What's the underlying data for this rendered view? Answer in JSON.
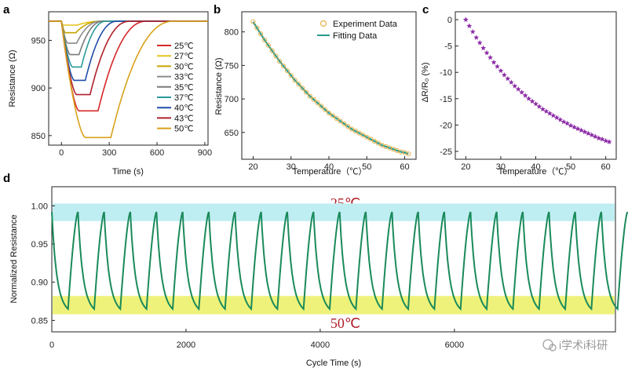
{
  "panels": {
    "a": "a",
    "b": "b",
    "c": "c",
    "d": "d"
  },
  "watermark": "i学术i科研",
  "chart_data": [
    {
      "panel": "a",
      "type": "line",
      "xlabel": "Time (s)",
      "ylabel": "Resistance (Ω)",
      "xlim": [
        -80,
        920
      ],
      "ylim": [
        840,
        980
      ],
      "xticks": [
        0,
        300,
        600,
        900
      ],
      "yticks": [
        850,
        900,
        950
      ],
      "legend_position": "right",
      "series": [
        {
          "name": "25℃",
          "color": "#d62728",
          "min": 876,
          "t_fall_end": 110,
          "t_hold_end": 230
        },
        {
          "name": "27℃",
          "color": "#e8c21f",
          "min": 966,
          "t_fall_end": 10,
          "t_hold_end": 100
        },
        {
          "name": "30℃",
          "color": "#c9a400",
          "min": 958,
          "t_fall_end": 25,
          "t_hold_end": 90
        },
        {
          "name": "33℃",
          "color": "#8c8c8c",
          "min": 947,
          "t_fall_end": 40,
          "t_hold_end": 95
        },
        {
          "name": "35℃",
          "color": "#7a7a7a",
          "min": 935,
          "t_fall_end": 55,
          "t_hold_end": 110
        },
        {
          "name": "37℃",
          "color": "#2a9a9a",
          "min": 922,
          "t_fall_end": 70,
          "t_hold_end": 125
        },
        {
          "name": "40℃",
          "color": "#1f4ea8",
          "min": 908,
          "t_fall_end": 80,
          "t_hold_end": 150
        },
        {
          "name": "43℃",
          "color": "#b0202a",
          "min": 893,
          "t_fall_end": 95,
          "t_hold_end": 180
        },
        {
          "name": "50℃",
          "color": "#d8a21a",
          "min": 848,
          "t_fall_end": 150,
          "t_hold_end": 310
        }
      ],
      "baseline": 970
    },
    {
      "panel": "b",
      "type": "scatter",
      "xlabel": "Temperature（℃）",
      "ylabel": "Resistance (Ω)",
      "xlim": [
        17,
        63
      ],
      "ylim": [
        610,
        830
      ],
      "xticks": [
        20,
        30,
        40,
        50,
        60
      ],
      "yticks": [
        650,
        700,
        750,
        800
      ],
      "legend_position": "top-right",
      "series": [
        {
          "name": "Experiment Data",
          "color": "#e8b04a",
          "marker": "hexagon-open"
        },
        {
          "name": "Fitting Data",
          "color": "#2a9a8a",
          "marker": "line"
        }
      ],
      "x": [
        20,
        21,
        22,
        23,
        24,
        25,
        26,
        27,
        28,
        29,
        30,
        31,
        32,
        33,
        34,
        35,
        36,
        37,
        38,
        39,
        40,
        41,
        42,
        43,
        44,
        45,
        46,
        47,
        48,
        49,
        50,
        51,
        52,
        53,
        54,
        55,
        56,
        57,
        58,
        59,
        60,
        61
      ],
      "y": [
        815,
        806,
        797,
        788,
        780,
        772,
        764,
        756,
        749,
        742,
        735,
        728,
        722,
        716,
        710,
        704,
        699,
        694,
        689,
        684,
        679,
        675,
        671,
        667,
        663,
        659,
        655,
        652,
        649,
        646,
        643,
        640,
        637,
        634,
        631,
        629,
        627,
        625,
        623,
        621,
        620,
        618
      ]
    },
    {
      "panel": "c",
      "type": "scatter",
      "xlabel": "Temperature（℃）",
      "ylabel": "ΔR/R₀ (%)",
      "xlim": [
        17,
        63
      ],
      "ylim": [
        -26.5,
        1.5
      ],
      "xticks": [
        20,
        30,
        40,
        50,
        60
      ],
      "yticks": [
        0,
        -5,
        -10,
        -15,
        -20,
        -25
      ],
      "series": [
        {
          "name": "",
          "color": "#8e2da8",
          "marker": "star"
        }
      ],
      "x": [
        20,
        21,
        22,
        23,
        24,
        25,
        26,
        27,
        28,
        29,
        30,
        31,
        32,
        33,
        34,
        35,
        36,
        37,
        38,
        39,
        40,
        41,
        42,
        43,
        44,
        45,
        46,
        47,
        48,
        49,
        50,
        51,
        52,
        53,
        54,
        55,
        56,
        57,
        58,
        59,
        60,
        61
      ],
      "y": [
        0,
        -1.2,
        -2.3,
        -3.4,
        -4.4,
        -5.4,
        -6.3,
        -7.2,
        -8.1,
        -8.9,
        -9.7,
        -10.5,
        -11.2,
        -11.9,
        -12.6,
        -13.2,
        -13.8,
        -14.4,
        -15,
        -15.5,
        -16,
        -16.5,
        -17,
        -17.4,
        -17.8,
        -18.2,
        -18.6,
        -19,
        -19.4,
        -19.7,
        -20.1,
        -20.4,
        -20.7,
        -21,
        -21.3,
        -21.6,
        -21.9,
        -22.2,
        -22.5,
        -22.7,
        -23,
        -23.2
      ]
    },
    {
      "panel": "d",
      "type": "line",
      "xlabel": "Cycle Time (s)",
      "ylabel": "Normalized Resistance",
      "xlim": [
        0,
        8400
      ],
      "ylim": [
        0.835,
        1.025
      ],
      "xticks": [
        0,
        2000,
        4000,
        6000
      ],
      "yticks": [
        0.85,
        0.9,
        0.95,
        1.0
      ],
      "color": "#1a8a5a",
      "cycles": 22,
      "cycle_period": 390,
      "first_cycle_start": 0,
      "high": 0.992,
      "low": 0.865,
      "bands": [
        {
          "label": "25℃",
          "range": [
            0.98,
            1.003
          ],
          "color": "#bfeef2"
        },
        {
          "label": "50℃",
          "range": [
            0.858,
            0.882
          ],
          "color": "#eef27a"
        }
      ]
    }
  ]
}
